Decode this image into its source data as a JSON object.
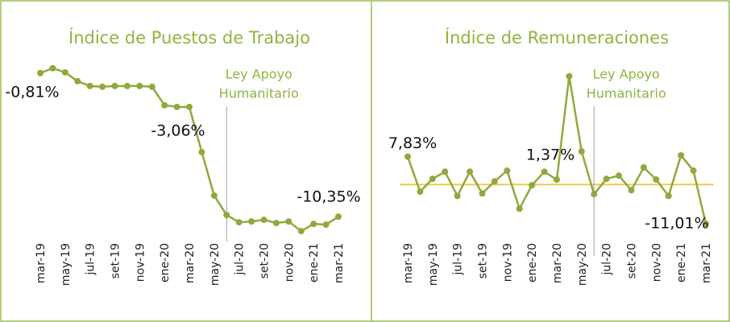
{
  "chart_data": [
    {
      "type": "line",
      "title": "Índice de Puestos de Trabajo",
      "categories": [
        "mar-19",
        null,
        "may-19",
        null,
        "jul-19",
        null,
        "set-19",
        null,
        "nov-19",
        null,
        "ene-20",
        null,
        "mar-20",
        null,
        "may-20",
        null,
        "jul-20",
        null,
        "set-20",
        null,
        "nov-20",
        null,
        "ene-21",
        null,
        "mar-21"
      ],
      "series": [
        {
          "color": "#8eaa3c",
          "values": [
            -0.81,
            -0.49,
            -0.76,
            -1.35,
            -1.67,
            -1.72,
            -1.67,
            -1.67,
            -1.67,
            -1.72,
            -2.95,
            -3.06,
            -3.06,
            -6.06,
            -8.95,
            -10.24,
            -10.72,
            -10.67,
            -10.56,
            -10.77,
            -10.67,
            -11.31,
            -10.83,
            -10.88,
            -10.35
          ],
          "value_labels": [
            "-0,81%",
            null,
            null,
            null,
            null,
            null,
            null,
            null,
            null,
            null,
            null,
            null,
            "-3,06%",
            null,
            null,
            null,
            null,
            null,
            null,
            null,
            null,
            null,
            null,
            null,
            "-10,35%"
          ]
        }
      ],
      "annotation": [
        "Ley Apoyo",
        "Humanitario"
      ],
      "ylim": [
        -12,
        0.3
      ]
    },
    {
      "type": "line",
      "title": "Índice de Remuneraciones",
      "categories": [
        "mar-19",
        null,
        "may-19",
        null,
        "jul-19",
        null,
        "set-19",
        null,
        "nov-19",
        null,
        "ene-20",
        null,
        "mar-20",
        null,
        "may-20",
        null,
        "jul-20",
        null,
        "set-20",
        null,
        "nov-20",
        null,
        "ene-21",
        null,
        "mar-21"
      ],
      "series": [
        {
          "color": "#8eaa3c",
          "values": [
            7.83,
            -2.0,
            1.6,
            3.6,
            -3.2,
            3.6,
            -2.5,
            0.9,
            3.9,
            -6.8,
            -0.2,
            3.6,
            1.37,
            30.4,
            9.3,
            -2.7,
            1.6,
            2.5,
            -1.6,
            4.8,
            1.4,
            -3.2,
            8.2,
            3.9,
            -11.01
          ],
          "value_labels": [
            "7,83%",
            null,
            null,
            null,
            null,
            null,
            null,
            null,
            null,
            null,
            null,
            null,
            "1,37%",
            null,
            null,
            null,
            null,
            null,
            null,
            null,
            null,
            null,
            null,
            null,
            "-11,01%"
          ]
        }
      ],
      "annotation": [
        "Ley Apoyo",
        "Humanitario"
      ],
      "reference_line": 0,
      "reference_color": "#f2c94c",
      "ylim": [
        -16,
        36
      ]
    }
  ]
}
